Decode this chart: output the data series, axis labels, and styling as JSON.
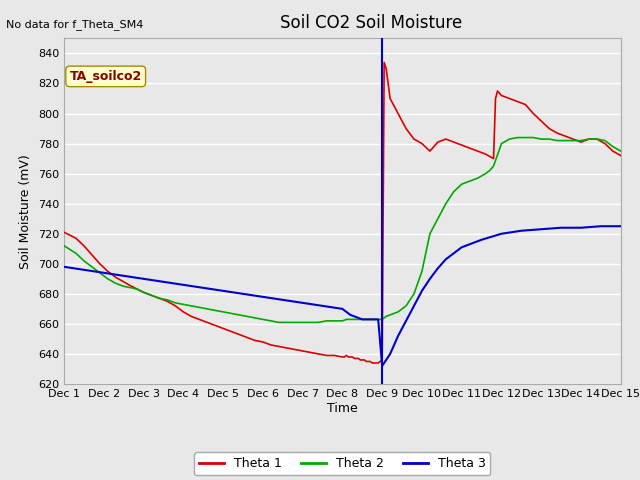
{
  "title": "Soil CO2 Soil Moisture",
  "no_data_text": "No data for f_Theta_SM4",
  "ylabel": "Soil Moisture (mV)",
  "xlabel": "Time",
  "annotation_box": "TA_soilco2",
  "ylim": [
    620,
    850
  ],
  "background_color": "#e8e8e8",
  "plot_bg_color": "#e8e8e8",
  "grid_color": "#ffffff",
  "legend_labels": [
    "Theta 1",
    "Theta 2",
    "Theta 3"
  ],
  "legend_colors": [
    "#dd0000",
    "#00aa00",
    "#0000cc"
  ],
  "xtick_labels": [
    "Dec 1",
    "Dec 2",
    "Dec 3",
    "Dec 4",
    "Dec 5",
    "Dec 6",
    "Dec 7",
    "Dec 8",
    "Dec 9",
    "Dec 10",
    "Dec 11",
    "Dec 12",
    "Dec 13",
    "Dec 14",
    "Dec 15"
  ],
  "ytick_values": [
    620,
    640,
    660,
    680,
    700,
    720,
    740,
    760,
    780,
    800,
    820,
    840
  ],
  "red_line": {
    "x": [
      0,
      0.3,
      0.5,
      0.7,
      0.9,
      1.1,
      1.3,
      1.5,
      1.7,
      1.85,
      2.0,
      2.2,
      2.4,
      2.6,
      2.8,
      3.0,
      3.2,
      3.4,
      3.6,
      3.8,
      4.0,
      4.2,
      4.4,
      4.6,
      4.8,
      5.0,
      5.2,
      5.4,
      5.6,
      5.8,
      6.0,
      6.2,
      6.4,
      6.6,
      6.8,
      7.0,
      7.05,
      7.1,
      7.15,
      7.2,
      7.25,
      7.3,
      7.35,
      7.4,
      7.45,
      7.5,
      7.55,
      7.6,
      7.65,
      7.7,
      7.75,
      7.8,
      7.85,
      7.9,
      7.95,
      8.0,
      8.05,
      8.1,
      8.2,
      8.4,
      8.6,
      8.8,
      9.0,
      9.2,
      9.4,
      9.6,
      9.8,
      10.0,
      10.2,
      10.4,
      10.6,
      10.8,
      10.85,
      10.9,
      11.0,
      11.2,
      11.4,
      11.6,
      11.8,
      12.0,
      12.2,
      12.4,
      12.6,
      12.8,
      13.0,
      13.2,
      13.4,
      13.6,
      13.8,
      14.0
    ],
    "y": [
      721,
      717,
      712,
      706,
      700,
      695,
      691,
      688,
      685,
      683,
      681,
      679,
      677,
      675,
      672,
      668,
      665,
      663,
      661,
      659,
      657,
      655,
      653,
      651,
      649,
      648,
      646,
      645,
      644,
      643,
      642,
      641,
      640,
      639,
      639,
      638,
      638,
      639,
      638,
      638,
      638,
      637,
      637,
      637,
      636,
      636,
      636,
      635,
      635,
      635,
      634,
      634,
      634,
      634,
      635,
      636,
      834,
      830,
      810,
      800,
      790,
      783,
      780,
      775,
      781,
      783,
      781,
      779,
      777,
      775,
      773,
      770,
      810,
      815,
      812,
      810,
      808,
      806,
      800,
      795,
      790,
      787,
      785,
      783,
      781,
      783,
      783,
      780,
      775,
      772
    ]
  },
  "green_line": {
    "x": [
      0,
      0.3,
      0.5,
      0.7,
      0.9,
      1.1,
      1.3,
      1.5,
      1.7,
      1.85,
      2.0,
      2.2,
      2.4,
      2.6,
      2.8,
      3.0,
      3.2,
      3.4,
      3.6,
      3.8,
      4.0,
      4.2,
      4.4,
      4.6,
      4.8,
      5.0,
      5.2,
      5.4,
      5.6,
      5.8,
      6.0,
      6.2,
      6.4,
      6.6,
      6.8,
      7.0,
      7.1,
      7.2,
      7.3,
      7.4,
      7.5,
      7.6,
      7.7,
      7.8,
      7.9,
      8.0,
      8.1,
      8.2,
      8.4,
      8.6,
      8.8,
      9.0,
      9.2,
      9.4,
      9.6,
      9.8,
      10.0,
      10.2,
      10.4,
      10.6,
      10.7,
      10.8,
      11.0,
      11.2,
      11.4,
      11.6,
      11.8,
      12.0,
      12.2,
      12.4,
      12.6,
      12.8,
      13.0,
      13.2,
      13.4,
      13.6,
      13.8,
      14.0
    ],
    "y": [
      712,
      707,
      702,
      698,
      694,
      690,
      687,
      685,
      684,
      683,
      681,
      679,
      677,
      676,
      674,
      673,
      672,
      671,
      670,
      669,
      668,
      667,
      666,
      665,
      664,
      663,
      662,
      661,
      661,
      661,
      661,
      661,
      661,
      662,
      662,
      662,
      663,
      663,
      663,
      663,
      663,
      663,
      663,
      663,
      663,
      663,
      665,
      666,
      668,
      672,
      680,
      695,
      720,
      730,
      740,
      748,
      753,
      755,
      757,
      760,
      762,
      765,
      780,
      783,
      784,
      784,
      784,
      783,
      783,
      782,
      782,
      782,
      782,
      783,
      783,
      782,
      778,
      775
    ]
  },
  "blue_line": {
    "x": [
      0,
      0.5,
      1.0,
      1.5,
      2.0,
      2.5,
      3.0,
      3.5,
      4.0,
      4.5,
      5.0,
      5.5,
      6.0,
      6.5,
      7.0,
      7.1,
      7.2,
      7.3,
      7.4,
      7.5,
      7.6,
      7.7,
      7.8,
      7.9,
      8.0,
      8.2,
      8.4,
      8.6,
      8.8,
      9.0,
      9.2,
      9.4,
      9.6,
      9.8,
      10.0,
      10.5,
      11.0,
      11.5,
      12.0,
      12.5,
      13.0,
      13.5,
      14.0
    ],
    "y": [
      698,
      696,
      694,
      692,
      690,
      688,
      686,
      684,
      682,
      680,
      678,
      676,
      674,
      672,
      670,
      668,
      666,
      665,
      664,
      663,
      663,
      663,
      663,
      663,
      632,
      640,
      652,
      662,
      672,
      682,
      690,
      697,
      703,
      707,
      711,
      716,
      720,
      722,
      723,
      724,
      724,
      725,
      725
    ]
  },
  "vline_x": 8.0,
  "vline_color": "#0000cc"
}
